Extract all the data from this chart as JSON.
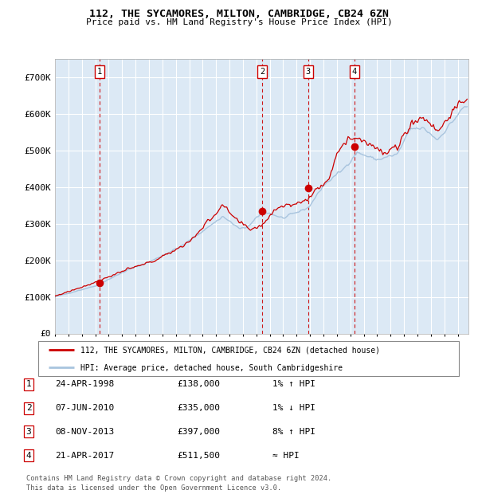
{
  "title": "112, THE SYCAMORES, MILTON, CAMBRIDGE, CB24 6ZN",
  "subtitle": "Price paid vs. HM Land Registry's House Price Index (HPI)",
  "legend_line1": "112, THE SYCAMORES, MILTON, CAMBRIDGE, CB24 6ZN (detached house)",
  "legend_line2": "HPI: Average price, detached house, South Cambridgeshire",
  "sale_points": [
    {
      "label": "1",
      "date_str": "24-APR-1998",
      "price": 138000,
      "year": 1998.31
    },
    {
      "label": "2",
      "date_str": "07-JUN-2010",
      "price": 335000,
      "year": 2010.44
    },
    {
      "label": "3",
      "date_str": "08-NOV-2013",
      "price": 397000,
      "year": 2013.85
    },
    {
      "label": "4",
      "date_str": "21-APR-2017",
      "price": 511500,
      "year": 2017.31
    }
  ],
  "table_rows": [
    {
      "num": "1",
      "date": "24-APR-1998",
      "price": "£138,000",
      "change": "1% ↑ HPI"
    },
    {
      "num": "2",
      "date": "07-JUN-2010",
      "price": "£335,000",
      "change": "1% ↓ HPI"
    },
    {
      "num": "3",
      "date": "08-NOV-2013",
      "price": "£397,000",
      "change": "8% ↑ HPI"
    },
    {
      "num": "4",
      "date": "21-APR-2017",
      "price": "£511,500",
      "change": "≈ HPI"
    }
  ],
  "footer": "Contains HM Land Registry data © Crown copyright and database right 2024.\nThis data is licensed under the Open Government Licence v3.0.",
  "hpi_color": "#a8c4de",
  "price_color": "#cc0000",
  "bg_color": "#dce9f5",
  "grid_color": "#ffffff",
  "vline_color": "#cc0000",
  "ylim": [
    0,
    750000
  ],
  "yticks": [
    0,
    100000,
    200000,
    300000,
    400000,
    500000,
    600000,
    700000
  ],
  "xlim_start": 1995.0,
  "xlim_end": 2025.8
}
